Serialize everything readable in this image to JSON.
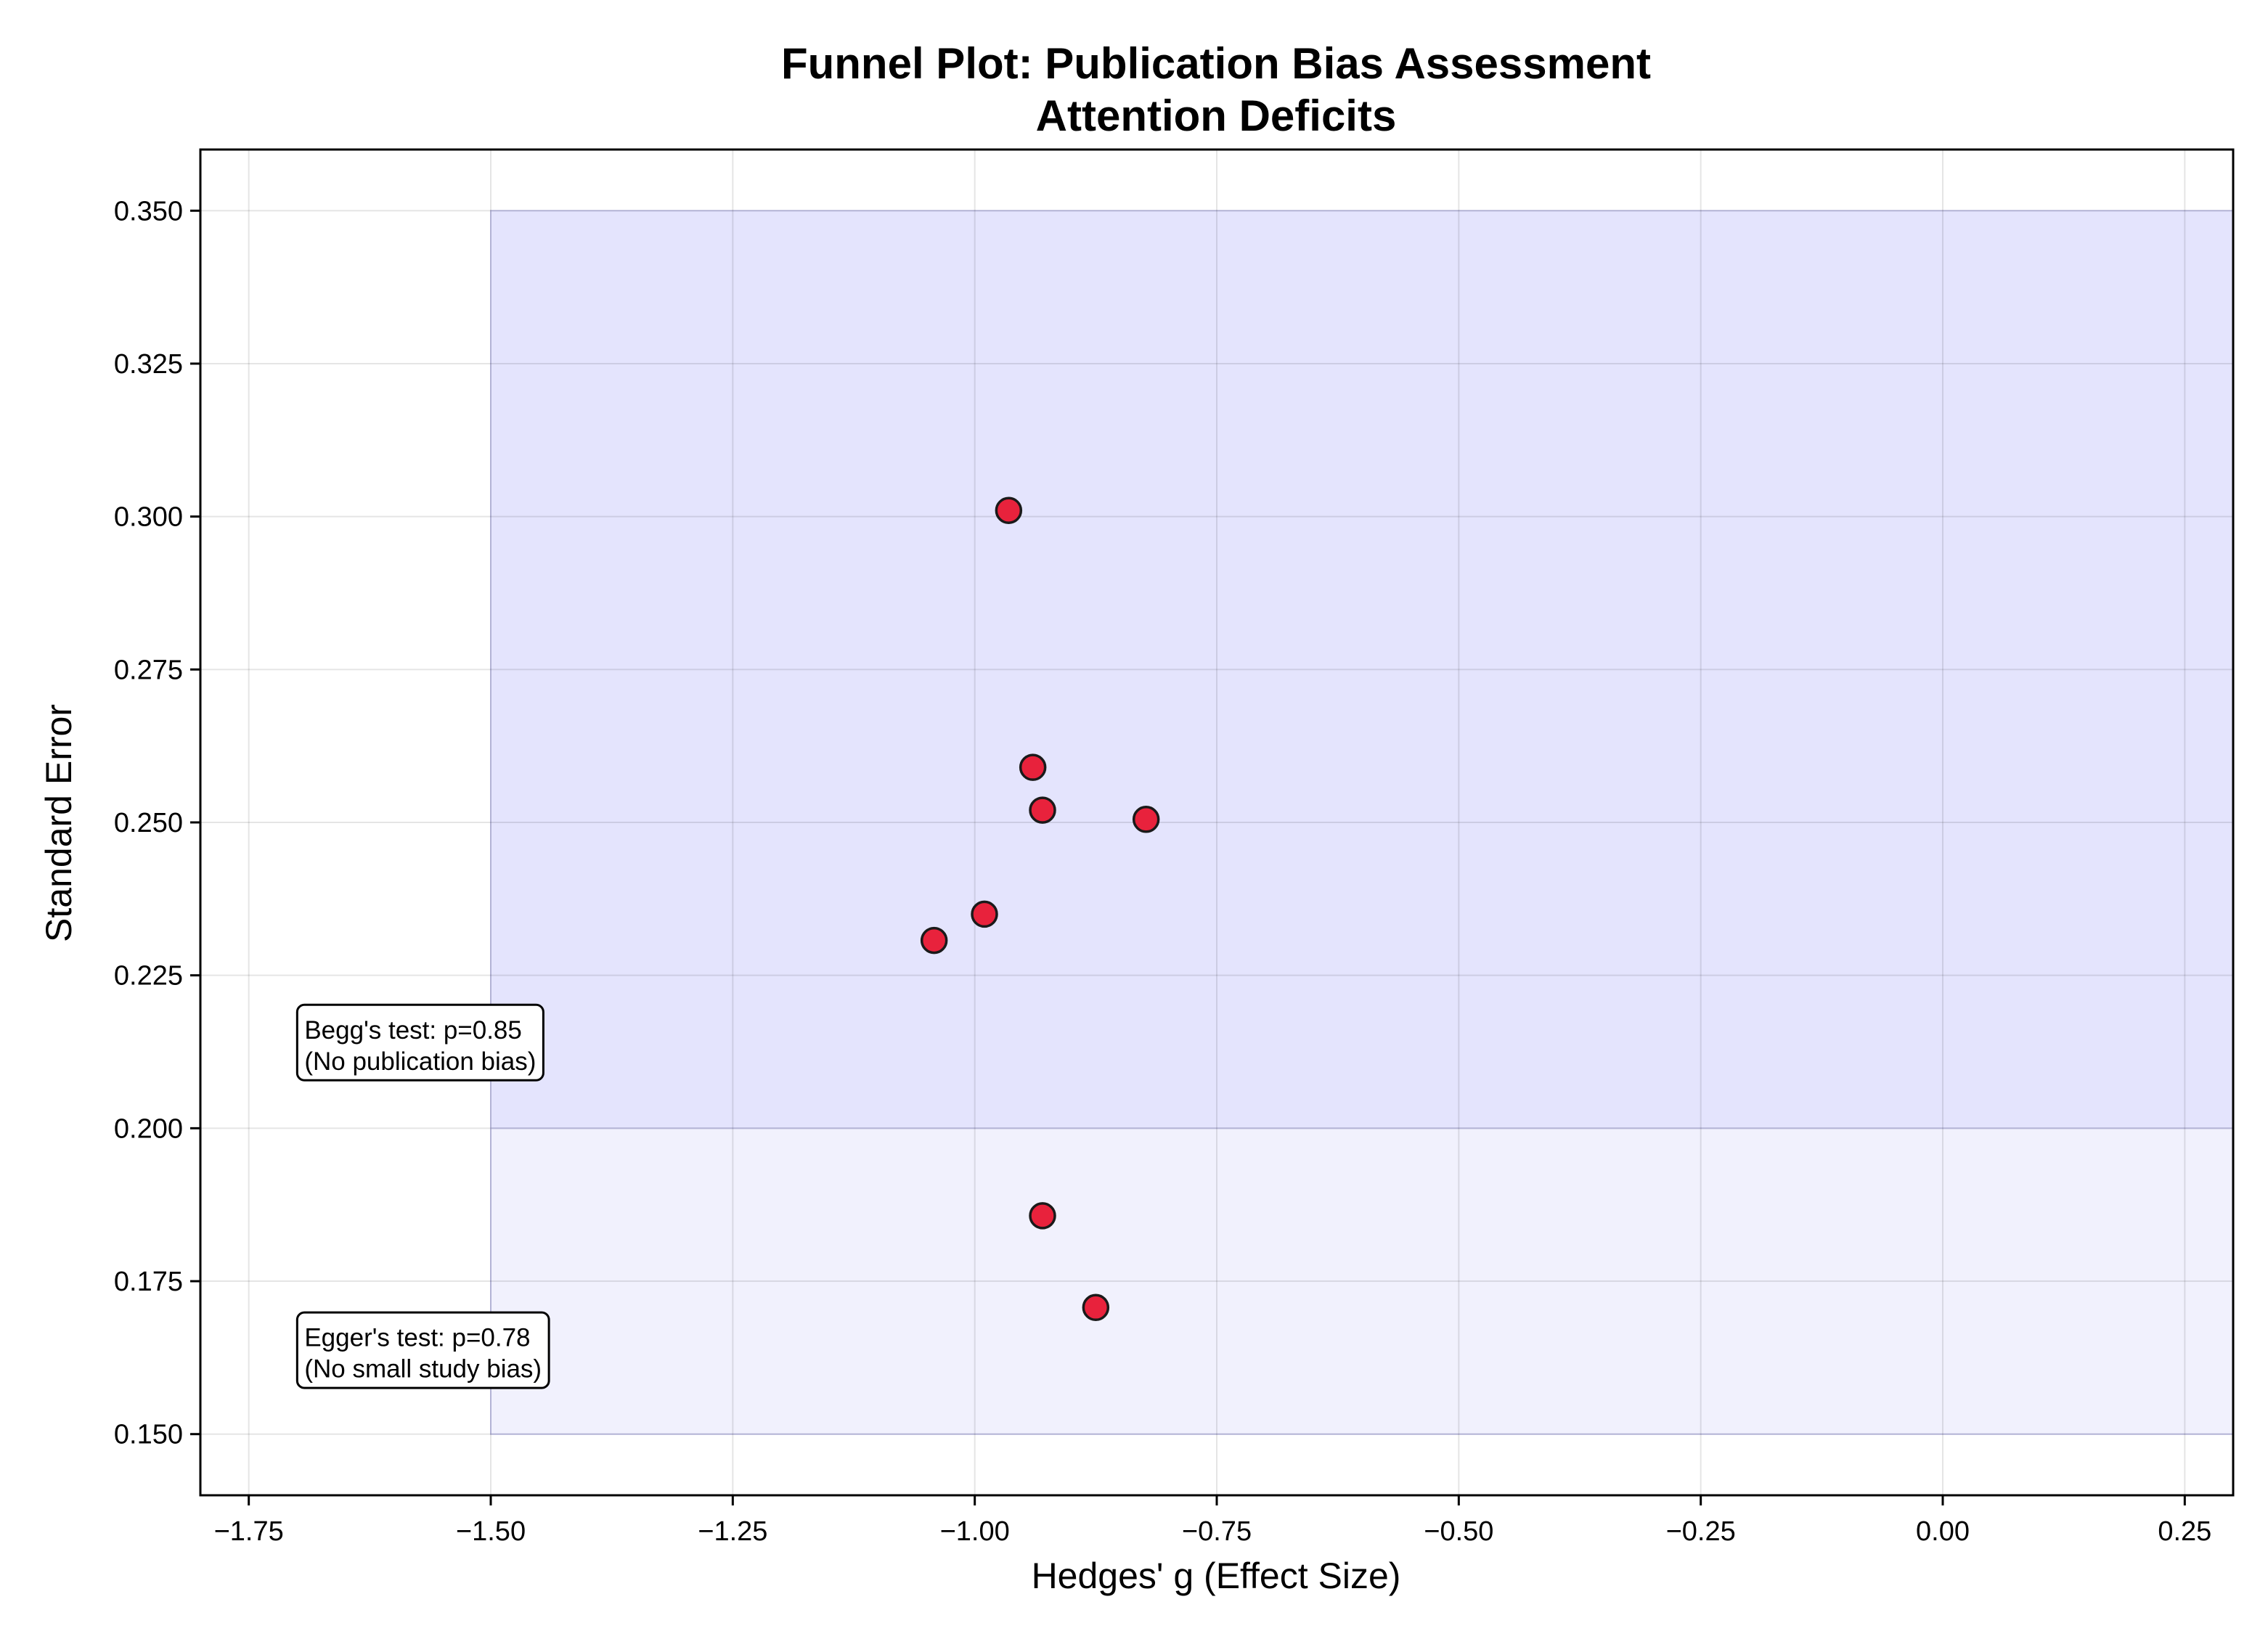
{
  "chart_data": {
    "type": "scatter",
    "title": [
      "Funnel Plot: Publication Bias Assessment",
      "Attention Deficits"
    ],
    "xlabel": "Hedges' g (Effect Size)",
    "ylabel": "Standard Error",
    "xlim": [
      -1.8,
      0.3
    ],
    "ylim": [
      0.14,
      0.36
    ],
    "xticks": [
      -1.75,
      -1.5,
      -1.25,
      -1.0,
      -0.75,
      -0.5,
      -0.25,
      0.0,
      0.25
    ],
    "xtick_labels": [
      "−1.75",
      "−1.50",
      "−1.25",
      "−1.00",
      "−0.75",
      "−0.50",
      "−0.25",
      "0.00",
      "0.25"
    ],
    "yticks": [
      0.15,
      0.175,
      0.2,
      0.225,
      0.25,
      0.275,
      0.3,
      0.325,
      0.35
    ],
    "ytick_labels": [
      "0.150",
      "0.175",
      "0.200",
      "0.225",
      "0.250",
      "0.275",
      "0.300",
      "0.325",
      "0.350"
    ],
    "grid": true,
    "regions": [
      {
        "x": [
          -1.5,
          0.3
        ],
        "y": [
          0.2,
          0.35
        ],
        "color": "#e4e4fd"
      },
      {
        "x": [
          -1.5,
          0.3
        ],
        "y": [
          0.15,
          0.2
        ],
        "color": "#f1f1fd"
      }
    ],
    "series": [
      {
        "color": "#e8223c",
        "edge_color": "#1a1a1a",
        "points": [
          {
            "x": -0.965,
            "y": 0.301
          },
          {
            "x": -0.94,
            "y": 0.259
          },
          {
            "x": -0.93,
            "y": 0.252
          },
          {
            "x": -0.823,
            "y": 0.2505
          },
          {
            "x": -0.99,
            "y": 0.235
          },
          {
            "x": -1.042,
            "y": 0.2307
          },
          {
            "x": -0.93,
            "y": 0.1857
          },
          {
            "x": -0.875,
            "y": 0.1707
          }
        ]
      }
    ],
    "annotations": [
      {
        "lines": [
          "Begg's test: p=0.85",
          "(No publication bias)"
        ],
        "x": -1.7,
        "y": 0.2133
      },
      {
        "lines": [
          "Egger's test: p=0.78",
          "(No small study bias)"
        ],
        "x": -1.7,
        "y": 0.163
      }
    ]
  }
}
